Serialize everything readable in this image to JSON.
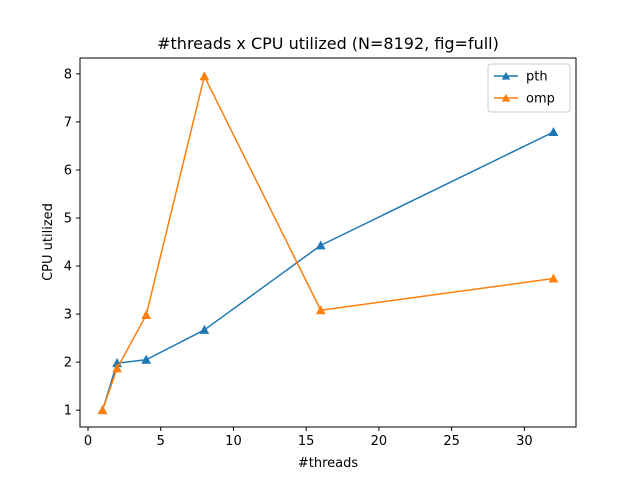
{
  "chart_data": {
    "type": "line",
    "title": "#threads x CPU utilized (N=8192, fig=full)",
    "xlabel": "#threads",
    "ylabel": "CPU utilized",
    "xlim": [
      -0.55,
      33.55
    ],
    "ylim": [
      0.65,
      8.33
    ],
    "xticks": [
      0,
      5,
      10,
      15,
      20,
      25,
      30
    ],
    "yticks": [
      1,
      2,
      3,
      4,
      5,
      6,
      7,
      8
    ],
    "grid": false,
    "legend_position": "top-right",
    "marker": "triangle-up",
    "series": [
      {
        "name": "pth",
        "color": "#1f77b4",
        "x": [
          1,
          2,
          4,
          8,
          16,
          32
        ],
        "y": [
          1.0,
          1.98,
          2.05,
          2.67,
          4.43,
          6.79
        ]
      },
      {
        "name": "omp",
        "color": "#ff7f0e",
        "x": [
          1,
          2,
          4,
          8,
          16,
          32
        ],
        "y": [
          1.0,
          1.87,
          2.98,
          7.95,
          3.08,
          3.74
        ]
      }
    ]
  }
}
